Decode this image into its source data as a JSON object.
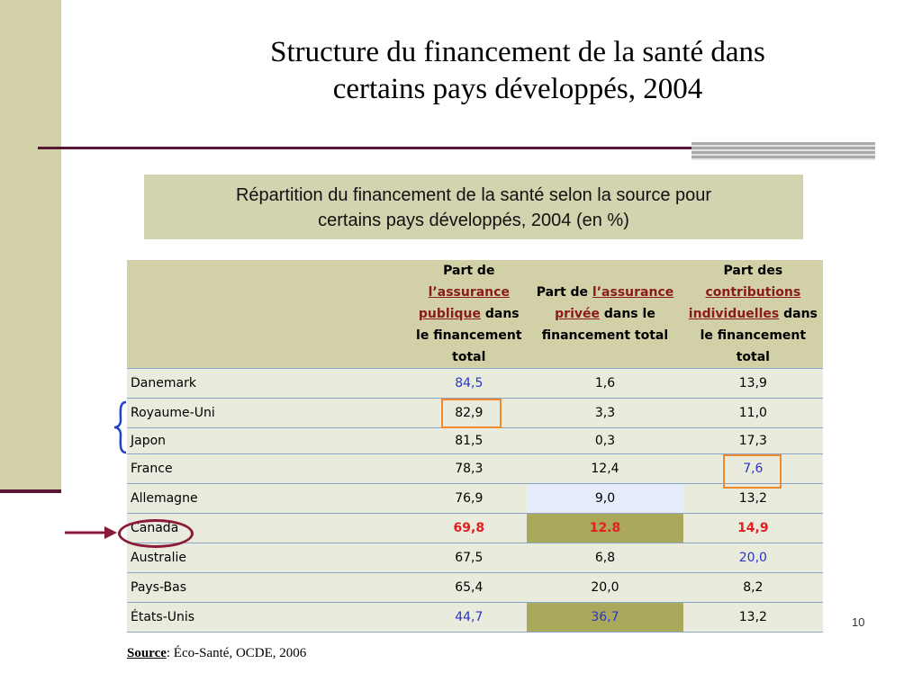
{
  "slide": {
    "title_lines": [
      "Structure du financement de la santé dans",
      "certains pays développés, 2004"
    ],
    "subtitle_lines": [
      "Répartition du financement de la santé selon la source pour",
      "certains pays développés, 2004 (en %)"
    ],
    "page_number": "10",
    "source_label": "Source",
    "source_text": ": Éco-Santé, OCDE, 2006"
  },
  "table": {
    "headers": {
      "col1": {
        "pre": "Part de",
        "link_1": "l’assurance",
        "link_2": "publique",
        "post_1": "dans",
        "post_2": "le financement",
        "post_3": "total"
      },
      "col2": {
        "pre": "Part de",
        "link_1": "l’assurance",
        "link_2": "privée",
        "post_1": "dans le",
        "post_2": "financement total"
      },
      "col3": {
        "pre": "Part des",
        "link_1": "contributions",
        "link_2": "individuelles",
        "post_1": "dans",
        "post_2": "le financement",
        "post_3": "total"
      }
    },
    "rows": [
      {
        "country": "Danemark",
        "public": "84,5",
        "private": "1,6",
        "individual": "13,9"
      },
      {
        "country": "Royaume-Uni",
        "public": "82,9",
        "private": "3,3",
        "individual": "11,0"
      },
      {
        "country": "Japon",
        "public": "81,5",
        "private": "0,3",
        "individual": "17,3"
      },
      {
        "country": "France",
        "public": "78,3",
        "private": "12,4",
        "individual": "7,6"
      },
      {
        "country": "Allemagne",
        "public": "76,9",
        "private": "9,0",
        "individual": "13,2"
      },
      {
        "country": "Canada",
        "public": "69,8",
        "private": "12.8",
        "individual": "14,9"
      },
      {
        "country": "Australie",
        "public": "67,5",
        "private": "6,8",
        "individual": "20,0"
      },
      {
        "country": "Pays-Bas",
        "public": "65,4",
        "private": "20,0",
        "individual": "8,2"
      },
      {
        "country": "États-Unis",
        "public": "44,7",
        "private": "36,7",
        "individual": "13,2"
      }
    ]
  },
  "colors": {
    "accent_bar": "#d1d0a7",
    "maroon": "#5a1635",
    "highlight_olive": "#aaa85a",
    "highlight_orange": "#f08a2c",
    "blue_value": "#2b35c2",
    "red_value": "#e02020"
  }
}
